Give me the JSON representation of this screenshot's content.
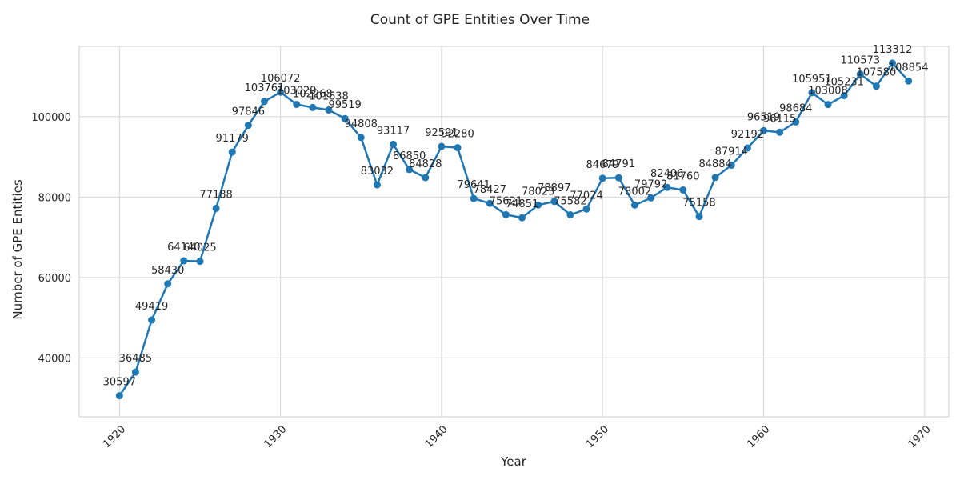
{
  "chart_data": {
    "type": "line",
    "title": "Count of GPE Entities Over Time",
    "xlabel": "Year",
    "ylabel": "Number of GPE Entities",
    "xlim": [
      1917.5,
      1971.5
    ],
    "ylim": [
      25360,
      117460
    ],
    "xticks": [
      1920,
      1930,
      1940,
      1950,
      1960,
      1970
    ],
    "yticks": [
      40000,
      60000,
      80000,
      100000
    ],
    "grid": true,
    "color": "#1f77b4",
    "x": [
      1920,
      1921,
      1922,
      1923,
      1924,
      1925,
      1926,
      1927,
      1928,
      1929,
      1930,
      1931,
      1932,
      1933,
      1934,
      1935,
      1936,
      1937,
      1938,
      1939,
      1940,
      1941,
      1942,
      1943,
      1944,
      1945,
      1946,
      1947,
      1948,
      1949,
      1950,
      1951,
      1952,
      1953,
      1954,
      1955,
      1956,
      1957,
      1958,
      1959,
      1960,
      1961,
      1962,
      1963,
      1964,
      1965,
      1966,
      1967,
      1968,
      1969
    ],
    "y": [
      30597,
      36485,
      49419,
      58430,
      64140,
      64025,
      77188,
      91179,
      97846,
      103761,
      106072,
      103029,
      102268,
      101638,
      99519,
      94808,
      83032,
      93117,
      86850,
      84828,
      92591,
      92280,
      79641,
      78427,
      75621,
      74851,
      78023,
      78897,
      75582,
      77024,
      84679,
      84791,
      78002,
      79792,
      82406,
      81760,
      75158,
      84884,
      87914,
      92192,
      96519,
      96115,
      98684,
      105951,
      103008,
      105231,
      110573,
      107580,
      113312,
      108854
    ]
  }
}
